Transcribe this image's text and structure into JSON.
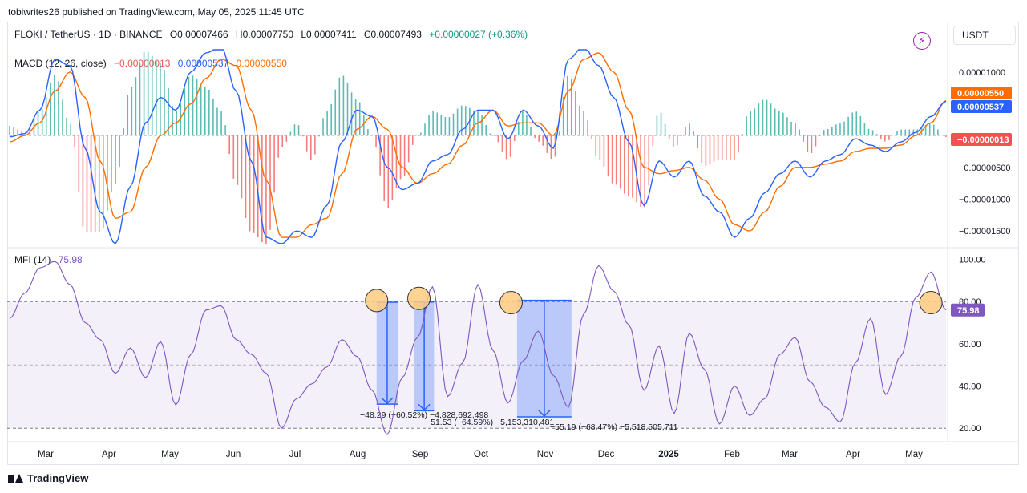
{
  "publisher": "tobiwrites26 published on TradingView.com, May 05, 2025 11:45 UTC",
  "symbol": {
    "name": "FLOKI / TetherUS · 1D · BINANCE",
    "o": "O0.00007466",
    "h": "H0.00007750",
    "l": "L0.00007411",
    "c": "C0.00007493",
    "change": "+0.00000027 (+0.36%)"
  },
  "currency_button": "USDT",
  "icons": {
    "alert": "lightning-icon",
    "brand": "tradingview-logo-icon"
  },
  "macd": {
    "label": "MACD (12, 26, close)",
    "hist_value": "−0.00000013",
    "macd_value": "0.00000537",
    "signal_value": "0.00000550",
    "axis_ticks": [
      "0.00001000",
      "−0.00000500",
      "−0.00001000",
      "−0.00001500"
    ],
    "badges": {
      "signal": "0.00000550",
      "macd": "0.00000537",
      "hist": "−0.00000013"
    }
  },
  "mfi": {
    "label": "MFI (14)",
    "value": "75.98",
    "axis_ticks": [
      "100.00",
      "80.00",
      "60.00",
      "40.00",
      "20.00"
    ],
    "badge": "75.98"
  },
  "annotations": [
    {
      "label": "−48.29 (−60.52%) −4,828,692,498"
    },
    {
      "label": "−51.53 (−64.59%) −5,153,310,481"
    },
    {
      "label": "−55.19 (−68.47%) −5,518,505,711"
    }
  ],
  "time_axis": [
    "Mar",
    "Apr",
    "May",
    "Jun",
    "Jul",
    "Aug",
    "Sep",
    "Oct",
    "Nov",
    "Dec",
    "2025",
    "Feb",
    "Mar",
    "Apr",
    "May"
  ],
  "footer_brand": "TradingView",
  "colors": {
    "macd_line": "#2962ff",
    "signal_line": "#ff6d00",
    "hist_pos": "#26a69a",
    "hist_neg": "#ef5350",
    "mfi_line": "#7e57c2",
    "mfi_band": "#7e57c2",
    "measure": "#2962ff",
    "circle_fill": "#ffcc80"
  },
  "chart_data": [
    {
      "type": "line",
      "title": "MACD (12, 26, close)",
      "ylim": [
        -1.75e-05,
        1.35e-05
      ],
      "x": [
        "Feb-26",
        "Mar-05",
        "Mar-12",
        "Mar-19",
        "Mar-26",
        "Apr-02",
        "Apr-09",
        "Apr-16",
        "Apr-23",
        "Apr-30",
        "May-07",
        "May-14",
        "May-21",
        "May-28",
        "Jun-04",
        "Jun-11",
        "Jun-18",
        "Jun-25",
        "Jul-02",
        "Jul-09",
        "Jul-16",
        "Jul-23",
        "Jul-30",
        "Aug-06",
        "Aug-13",
        "Aug-20",
        "Aug-27",
        "Sep-03",
        "Sep-10",
        "Sep-17",
        "Sep-24",
        "Oct-01",
        "Oct-08",
        "Oct-15",
        "Oct-22",
        "Oct-29",
        "Nov-05",
        "Nov-12",
        "Nov-19",
        "Nov-26",
        "Dec-03",
        "Dec-10",
        "Dec-17",
        "Dec-24",
        "Dec-31",
        "Jan-07",
        "Jan-14",
        "Jan-21",
        "Jan-28",
        "Feb-04",
        "Feb-11",
        "Feb-18",
        "Feb-25",
        "Mar-04",
        "Mar-11",
        "Mar-18",
        "Mar-25",
        "Apr-01",
        "Apr-08",
        "Apr-15",
        "Apr-22",
        "Apr-29",
        "May-05"
      ],
      "series": [
        {
          "name": "MACD",
          "values": [
            -2e-07,
            3e-07,
            4e-06,
            1.2e-05,
            1.1e-05,
            -2e-06,
            -1.2e-05,
            -1.7e-05,
            -8e-06,
            2e-06,
            6e-06,
            4e-06,
            1e-05,
            1.3e-05,
            1.4e-05,
            7e-06,
            -4e-06,
            -1.6e-05,
            -1.7e-05,
            -1.5e-05,
            -1.6e-05,
            -1.1e-05,
            -1e-06,
            4e-06,
            3e-06,
            -5e-06,
            -8.5e-06,
            -7.5e-06,
            -4e-06,
            -3e-06,
            1e-06,
            4e-06,
            4e-06,
            -5e-07,
            4e-06,
            1.5e-06,
            -2e-06,
            1.2e-05,
            1.4e-05,
            1.1e-05,
            6e-06,
            -1e-06,
            -1.1e-05,
            -4e-06,
            -6.5e-06,
            -4e-06,
            -9.5e-06,
            -1.2e-05,
            -1.6e-05,
            -1.3e-05,
            -9e-06,
            -6e-06,
            -4e-06,
            -6.5e-06,
            -4e-06,
            -3e-06,
            -5e-07,
            -1.5e-06,
            -2.5e-06,
            -1e-06,
            5e-07,
            3e-06,
            5.37e-06
          ]
        },
        {
          "name": "Signal",
          "values": [
            -1e-06,
            -0.0,
            2e-06,
            7e-06,
            1e-05,
            6e-06,
            -4e-06,
            -1.3e-05,
            -1.2e-05,
            -5e-06,
            0.0,
            2e-06,
            5e-06,
            9e-06,
            1.2e-05,
            1.1e-05,
            4e-06,
            -7e-06,
            -1.6e-05,
            -1.6e-05,
            -1.4e-05,
            -1.3e-05,
            -6e-06,
            1e-06,
            3e-06,
            1e-06,
            -5e-06,
            -7.5e-06,
            -6e-06,
            -4.5e-06,
            -1.5e-06,
            2e-06,
            4e-06,
            1.5e-06,
            2e-06,
            2e-06,
            0.0,
            7e-06,
            1.2e-05,
            1.3e-05,
            1e-05,
            4e-06,
            -5e-06,
            -6e-06,
            -5.5e-06,
            -5e-06,
            -7e-06,
            -1e-05,
            -1.4e-05,
            -1.5e-05,
            -1.2e-05,
            -8e-06,
            -5e-06,
            -5e-06,
            -4.5e-06,
            -4e-06,
            -2.5e-06,
            -2e-06,
            -2e-06,
            -1.5e-06,
            0.0,
            2e-06,
            5.5e-06
          ]
        }
      ]
    },
    {
      "type": "line",
      "title": "MFI (14)",
      "ylim": [
        14,
        104
      ],
      "bands": [
        20,
        80
      ],
      "midline": 50,
      "x": [
        "Feb-26",
        "Mar-05",
        "Mar-12",
        "Mar-19",
        "Mar-26",
        "Apr-02",
        "Apr-09",
        "Apr-16",
        "Apr-23",
        "Apr-30",
        "May-07",
        "May-14",
        "May-21",
        "May-28",
        "Jun-04",
        "Jun-11",
        "Jun-18",
        "Jun-25",
        "Jul-02",
        "Jul-09",
        "Jul-16",
        "Jul-23",
        "Jul-30",
        "Aug-06",
        "Aug-13",
        "Aug-20",
        "Aug-27",
        "Sep-03",
        "Sep-10",
        "Sep-17",
        "Sep-24",
        "Oct-01",
        "Oct-08",
        "Oct-15",
        "Oct-22",
        "Oct-29",
        "Nov-05",
        "Nov-12",
        "Nov-19",
        "Nov-26",
        "Dec-03",
        "Dec-10",
        "Dec-17",
        "Dec-24",
        "Dec-31",
        "Jan-07",
        "Jan-14",
        "Jan-21",
        "Jan-28",
        "Feb-04",
        "Feb-11",
        "Feb-18",
        "Feb-25",
        "Mar-04",
        "Mar-11",
        "Mar-18",
        "Mar-25",
        "Apr-01",
        "Apr-08",
        "Apr-15",
        "Apr-22",
        "Apr-29",
        "May-05"
      ],
      "series": [
        {
          "name": "MFI",
          "values": [
            72,
            84,
            96,
            99,
            88,
            70,
            62,
            46,
            58,
            44,
            61,
            31,
            55,
            76,
            78,
            62,
            55,
            46,
            20,
            34,
            41,
            49,
            62,
            54,
            38,
            17,
            44,
            63,
            87,
            35,
            51,
            88,
            57,
            32,
            52,
            66,
            45,
            30,
            74,
            97,
            85,
            69,
            38,
            59,
            27,
            65,
            48,
            22,
            40,
            26,
            34,
            55,
            63,
            42,
            30,
            23,
            51,
            72,
            36,
            54,
            82,
            94,
            75.98
          ]
        }
      ],
      "measurements": [
        {
          "from": 79.7,
          "to": 31.4,
          "change": "−48.29 (−60.52%)",
          "volume": "−4,828,692,498"
        },
        {
          "from": 79.8,
          "to": 28.3,
          "change": "−51.53 (−64.59%)",
          "volume": "−5,153,310,481"
        },
        {
          "from": 80.6,
          "to": 25.4,
          "change": "−55.19 (−68.47%)",
          "volume": "−5,518,505,711"
        }
      ]
    }
  ]
}
